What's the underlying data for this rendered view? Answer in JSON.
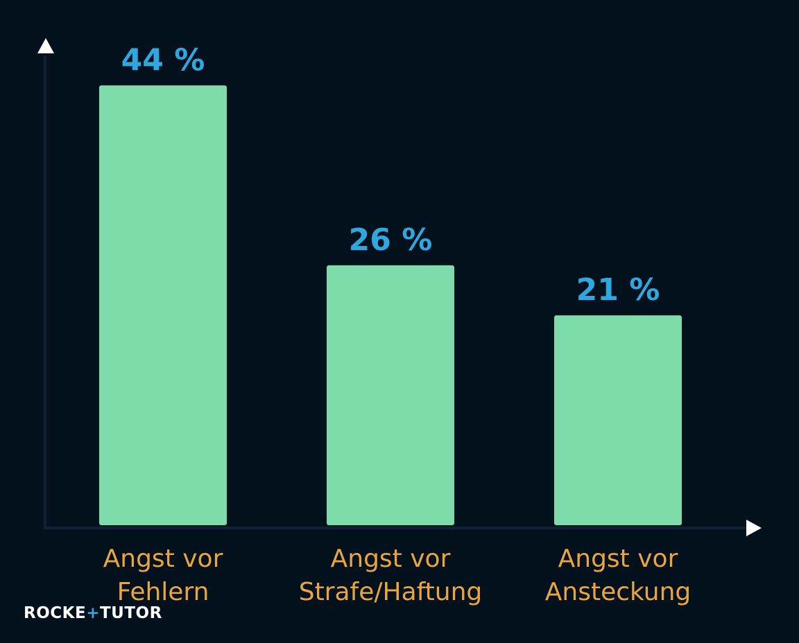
{
  "chart_data": {
    "type": "bar",
    "categories": [
      [
        "Angst vor",
        "Fehlern"
      ],
      [
        "Angst vor",
        "Strafe/Haftung"
      ],
      [
        "Angst vor",
        "Ansteckung"
      ]
    ],
    "values": [
      44,
      26,
      21
    ],
    "value_labels": [
      "44 %",
      "26 %",
      "21 %"
    ],
    "unit": "%",
    "title": "",
    "xlabel": "",
    "ylabel": "",
    "ylim": [
      0,
      47
    ],
    "grid": false,
    "legend": "none",
    "colors": {
      "background": "#03111d",
      "bar": "#7ddcaa",
      "value_label": "#2fa8e0",
      "category_label": "#e8a540",
      "axis": "#0f2233",
      "arrow": "#ffffff"
    }
  },
  "logo": {
    "part1": "ROCKE",
    "plus": "+",
    "part2": "TUTOR"
  }
}
